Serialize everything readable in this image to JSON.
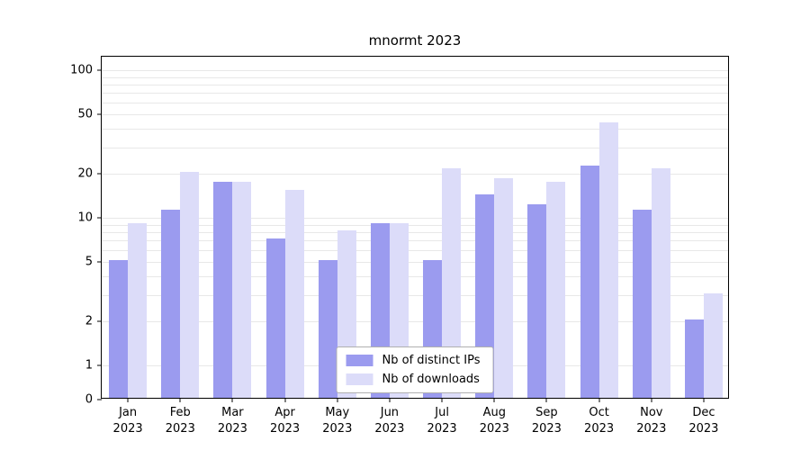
{
  "chart_data": {
    "type": "bar",
    "title": "mnormt 2023",
    "categories": [
      "Jan",
      "Feb",
      "Mar",
      "Apr",
      "May",
      "Jun",
      "Jul",
      "Aug",
      "Sep",
      "Oct",
      "Nov",
      "Dec"
    ],
    "year_label": "2023",
    "series": [
      {
        "name": "Nb of distinct IPs",
        "color": "#9b9bef",
        "values": [
          5,
          11,
          17,
          7,
          5,
          9,
          5,
          14,
          12,
          22,
          11,
          2
        ]
      },
      {
        "name": "Nb of downloads",
        "color": "#dcdcf9",
        "values": [
          9,
          20,
          17,
          15,
          8,
          9,
          21,
          18,
          17,
          43,
          21,
          3
        ]
      }
    ],
    "yscale": "symlog",
    "yticks": [
      0,
      1,
      2,
      5,
      10,
      20,
      50,
      100
    ],
    "minor_gridlines": [
      1,
      2,
      3,
      4,
      5,
      6,
      7,
      8,
      9,
      10,
      20,
      30,
      40,
      50,
      60,
      70,
      80,
      90,
      100
    ],
    "ylim": [
      0,
      123
    ],
    "grid": true,
    "legend_position": "lower center"
  }
}
